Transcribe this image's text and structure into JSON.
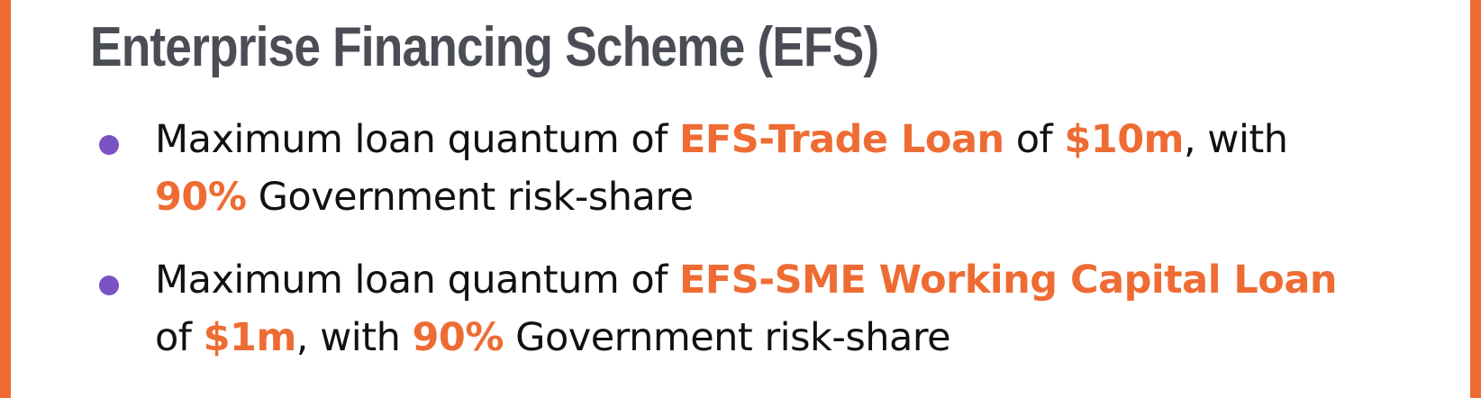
{
  "title": "Enterprise Financing Scheme (EFS)",
  "colors": {
    "frame": "#EE6C33",
    "title": "#4B4D55",
    "highlight": "#EE6C33",
    "bullet": "#7B52C4",
    "text": "#111111"
  },
  "bullets": [
    {
      "line1": {
        "t1": "Maximum loan quantum of ",
        "h1": "EFS-Trade Loan",
        "t2": " of ",
        "h2": "$10m",
        "t3": ", with"
      },
      "line2": {
        "h1": "90%",
        "t1": " Government risk-share"
      }
    },
    {
      "line1": {
        "t1": "Maximum loan quantum of ",
        "h1": "EFS-SME Working Capital Loan"
      },
      "line2": {
        "t1": "of ",
        "h1": "$1m",
        "t2": ", with ",
        "h2": "90%",
        "t3": " Government risk-share"
      }
    }
  ]
}
